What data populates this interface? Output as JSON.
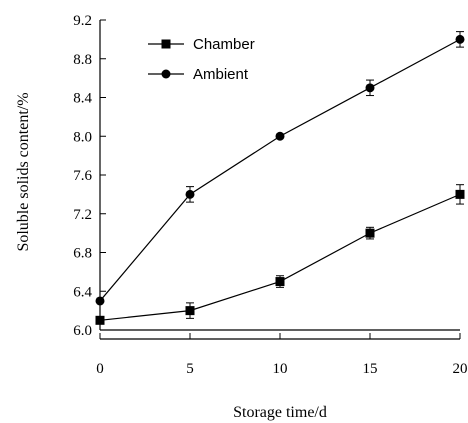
{
  "chart_data": {
    "type": "line",
    "x": [
      0,
      5,
      10,
      15,
      20
    ],
    "xlabel": "Storage time/d",
    "ylabel": "Soluble solids content/%",
    "xlim": [
      0,
      20
    ],
    "ylim": [
      6.0,
      9.2
    ],
    "xticks": [
      "0",
      "5",
      "10",
      "15",
      "20"
    ],
    "yticks": [
      "6.0",
      "6.4",
      "6.8",
      "7.2",
      "7.6",
      "8.0",
      "8.4",
      "8.8",
      "9.2"
    ],
    "grid": false,
    "legend_position": "top-left",
    "series": [
      {
        "name": "Chamber",
        "marker": "square",
        "values": [
          6.1,
          6.2,
          6.5,
          7.0,
          7.4
        ],
        "errors": [
          0.0,
          0.08,
          0.06,
          0.06,
          0.1
        ]
      },
      {
        "name": "Ambient",
        "marker": "circle",
        "values": [
          6.3,
          7.4,
          8.0,
          8.5,
          9.0
        ],
        "errors": [
          0.0,
          0.08,
          0.0,
          0.08,
          0.08
        ]
      }
    ]
  }
}
